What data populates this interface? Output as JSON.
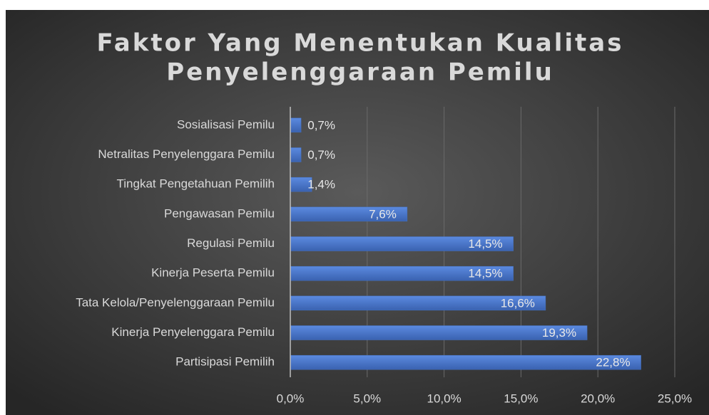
{
  "chart_data": {
    "type": "bar",
    "orientation": "horizontal",
    "title": [
      "Faktor Yang Menentukan Kualitas",
      "Penyelenggaraan Pemilu"
    ],
    "categories": [
      "Sosialisasi Pemilu",
      "Netralitas Penyelenggara Pemilu",
      "Tingkat Pengetahuan Pemilih",
      "Pengawasan Pemilu",
      "Regulasi Pemilu",
      "Kinerja Peserta Pemilu",
      "Tata Kelola/Penyelenggaraan Pemilu",
      "Kinerja Penyelenggara Pemilu",
      "Partisipasi Pemilih"
    ],
    "values": [
      0.7,
      0.7,
      1.4,
      7.6,
      14.5,
      14.5,
      16.6,
      19.3,
      22.8
    ],
    "value_labels": [
      "0,7%",
      "0,7%",
      "1,4%",
      "7,6%",
      "14,5%",
      "14,5%",
      "16,6%",
      "19,3%",
      "22,8%"
    ],
    "color": "#4472c4",
    "xlim": [
      0,
      25
    ],
    "xticks": [
      {
        "value": 0,
        "label": "0,0%"
      },
      {
        "value": 5,
        "label": "5,0%"
      },
      {
        "value": 10,
        "label": "10,0%"
      },
      {
        "value": 15,
        "label": "15,0%"
      },
      {
        "value": 20,
        "label": "20,0%"
      },
      {
        "value": 25,
        "label": "25,0%"
      }
    ],
    "grid": true
  }
}
